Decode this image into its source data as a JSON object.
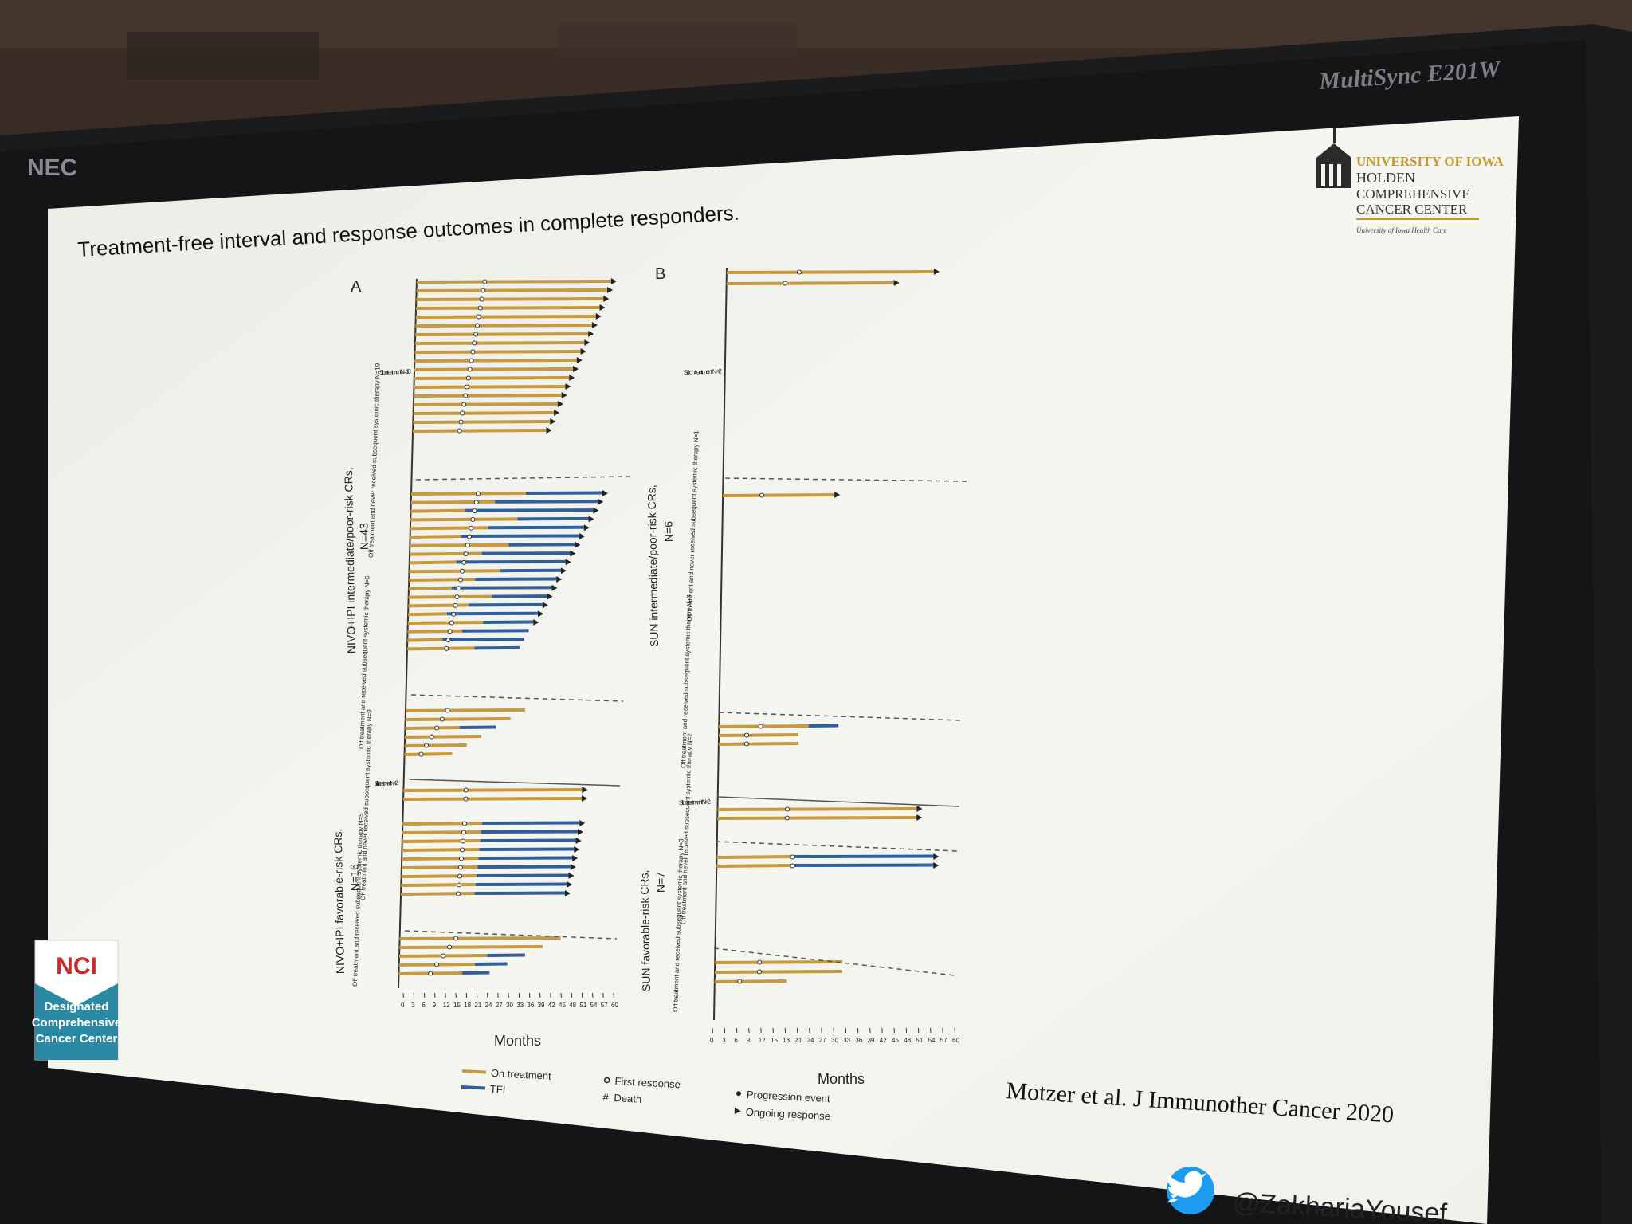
{
  "monitor": {
    "brand": "NEC",
    "model": "MultiSync E201W"
  },
  "slide": {
    "title": "Treatment-free interval and response outcomes in complete responders.",
    "logo": {
      "line1": "UNIVERSITY OF IOWA",
      "line2": "HOLDEN",
      "line3": "COMPREHENSIVE",
      "line4": "CANCER CENTER",
      "line5": "University of Iowa Health Care"
    },
    "nci_badge": {
      "name": "NCI",
      "line1": "Designated",
      "line2": "Comprehensive",
      "line3": "Cancer Center"
    },
    "citation": "Motzer et al. J Immunother Cancer 2020",
    "twitter": "@ZakhariaYousef"
  },
  "panelA": {
    "letter": "A",
    "xlabel": "Months",
    "ticks": [
      "0",
      "3",
      "6",
      "9",
      "12",
      "15",
      "18",
      "21",
      "24",
      "27",
      "30",
      "33",
      "36",
      "39",
      "42",
      "45",
      "48",
      "51",
      "54",
      "57",
      "60"
    ],
    "group1_label": "NIVO+IPI intermediate/poor-risk CRs,",
    "group1_n": "N=43",
    "group2_label": "NIVO+IPI favorable-risk CRs,",
    "group2_n": "N=16",
    "sub1": "Still on treatment N=18",
    "sub2": "Off treatment and never received subsequent systemic therapy N=19",
    "sub3": "Off treatment and received subsequent systemic therapy N=6",
    "sub4": "Still on treatment N=2",
    "sub5": "Off treatment and never received subsequent systemic therapy N=9",
    "sub6": "Off treatment and received subsequent systemic therapy N=5"
  },
  "panelB": {
    "letter": "B",
    "xlabel": "Months",
    "ticks": [
      "0",
      "3",
      "6",
      "9",
      "12",
      "15",
      "18",
      "21",
      "24",
      "27",
      "30",
      "33",
      "36",
      "39",
      "42",
      "45",
      "48",
      "51",
      "54",
      "57",
      "60"
    ],
    "group1_label": "SUN intermediate/poor-risk CRs,",
    "group1_n": "N=6",
    "group2_label": "SUN favorable-risk CRs,",
    "group2_n": "N=7",
    "sub1": "Still on treatment N=2",
    "sub2": "Off treatment and never received subsequent systemic therapy N=1",
    "sub3": "Off treatment and received subsequent systemic therapy N=3",
    "sub4": "Still on treatment N=2",
    "sub5": "Off treatment and never received subsequent systemic therapy N=2",
    "sub6": "Off treatment and received subsequent systemic therapy N=3"
  },
  "legend": {
    "on_treatment": "On treatment",
    "tfi": "TFI",
    "first_response": "First response",
    "death": "Death",
    "progression": "Progression event",
    "ongoing": "Ongoing response"
  },
  "colors": {
    "on_treatment": "#c8993e",
    "tfi": "#2f5f9e",
    "slide_bg": "#f3f3ef",
    "nci_teal": "#2a8aa3",
    "logo_gold": "#c49a2c"
  }
}
